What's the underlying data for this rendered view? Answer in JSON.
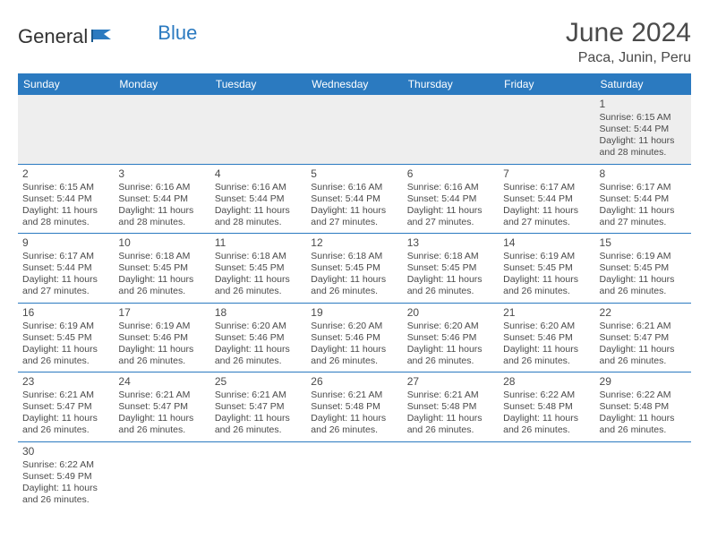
{
  "logo": {
    "text1": "General",
    "text2": "Blue"
  },
  "title": "June 2024",
  "location": "Paca, Junin, Peru",
  "dayHeaders": [
    "Sunday",
    "Monday",
    "Tuesday",
    "Wednesday",
    "Thursday",
    "Friday",
    "Saturday"
  ],
  "colors": {
    "headerBg": "#2b7ac0",
    "headerText": "#ffffff",
    "rowBorder": "#2b7ac0",
    "altBg": "#eeeeee",
    "text": "#4a4a4a"
  },
  "weeks": [
    [
      null,
      null,
      null,
      null,
      null,
      null,
      {
        "n": "1",
        "sr": "6:15 AM",
        "ss": "5:44 PM",
        "dl": "11 hours and 28 minutes."
      }
    ],
    [
      {
        "n": "2",
        "sr": "6:15 AM",
        "ss": "5:44 PM",
        "dl": "11 hours and 28 minutes."
      },
      {
        "n": "3",
        "sr": "6:16 AM",
        "ss": "5:44 PM",
        "dl": "11 hours and 28 minutes."
      },
      {
        "n": "4",
        "sr": "6:16 AM",
        "ss": "5:44 PM",
        "dl": "11 hours and 28 minutes."
      },
      {
        "n": "5",
        "sr": "6:16 AM",
        "ss": "5:44 PM",
        "dl": "11 hours and 27 minutes."
      },
      {
        "n": "6",
        "sr": "6:16 AM",
        "ss": "5:44 PM",
        "dl": "11 hours and 27 minutes."
      },
      {
        "n": "7",
        "sr": "6:17 AM",
        "ss": "5:44 PM",
        "dl": "11 hours and 27 minutes."
      },
      {
        "n": "8",
        "sr": "6:17 AM",
        "ss": "5:44 PM",
        "dl": "11 hours and 27 minutes."
      }
    ],
    [
      {
        "n": "9",
        "sr": "6:17 AM",
        "ss": "5:44 PM",
        "dl": "11 hours and 27 minutes."
      },
      {
        "n": "10",
        "sr": "6:18 AM",
        "ss": "5:45 PM",
        "dl": "11 hours and 26 minutes."
      },
      {
        "n": "11",
        "sr": "6:18 AM",
        "ss": "5:45 PM",
        "dl": "11 hours and 26 minutes."
      },
      {
        "n": "12",
        "sr": "6:18 AM",
        "ss": "5:45 PM",
        "dl": "11 hours and 26 minutes."
      },
      {
        "n": "13",
        "sr": "6:18 AM",
        "ss": "5:45 PM",
        "dl": "11 hours and 26 minutes."
      },
      {
        "n": "14",
        "sr": "6:19 AM",
        "ss": "5:45 PM",
        "dl": "11 hours and 26 minutes."
      },
      {
        "n": "15",
        "sr": "6:19 AM",
        "ss": "5:45 PM",
        "dl": "11 hours and 26 minutes."
      }
    ],
    [
      {
        "n": "16",
        "sr": "6:19 AM",
        "ss": "5:45 PM",
        "dl": "11 hours and 26 minutes."
      },
      {
        "n": "17",
        "sr": "6:19 AM",
        "ss": "5:46 PM",
        "dl": "11 hours and 26 minutes."
      },
      {
        "n": "18",
        "sr": "6:20 AM",
        "ss": "5:46 PM",
        "dl": "11 hours and 26 minutes."
      },
      {
        "n": "19",
        "sr": "6:20 AM",
        "ss": "5:46 PM",
        "dl": "11 hours and 26 minutes."
      },
      {
        "n": "20",
        "sr": "6:20 AM",
        "ss": "5:46 PM",
        "dl": "11 hours and 26 minutes."
      },
      {
        "n": "21",
        "sr": "6:20 AM",
        "ss": "5:46 PM",
        "dl": "11 hours and 26 minutes."
      },
      {
        "n": "22",
        "sr": "6:21 AM",
        "ss": "5:47 PM",
        "dl": "11 hours and 26 minutes."
      }
    ],
    [
      {
        "n": "23",
        "sr": "6:21 AM",
        "ss": "5:47 PM",
        "dl": "11 hours and 26 minutes."
      },
      {
        "n": "24",
        "sr": "6:21 AM",
        "ss": "5:47 PM",
        "dl": "11 hours and 26 minutes."
      },
      {
        "n": "25",
        "sr": "6:21 AM",
        "ss": "5:47 PM",
        "dl": "11 hours and 26 minutes."
      },
      {
        "n": "26",
        "sr": "6:21 AM",
        "ss": "5:48 PM",
        "dl": "11 hours and 26 minutes."
      },
      {
        "n": "27",
        "sr": "6:21 AM",
        "ss": "5:48 PM",
        "dl": "11 hours and 26 minutes."
      },
      {
        "n": "28",
        "sr": "6:22 AM",
        "ss": "5:48 PM",
        "dl": "11 hours and 26 minutes."
      },
      {
        "n": "29",
        "sr": "6:22 AM",
        "ss": "5:48 PM",
        "dl": "11 hours and 26 minutes."
      }
    ],
    [
      {
        "n": "30",
        "sr": "6:22 AM",
        "ss": "5:49 PM",
        "dl": "11 hours and 26 minutes."
      },
      null,
      null,
      null,
      null,
      null,
      null
    ]
  ],
  "labels": {
    "sunrise": "Sunrise: ",
    "sunset": "Sunset: ",
    "daylight": "Daylight: "
  }
}
